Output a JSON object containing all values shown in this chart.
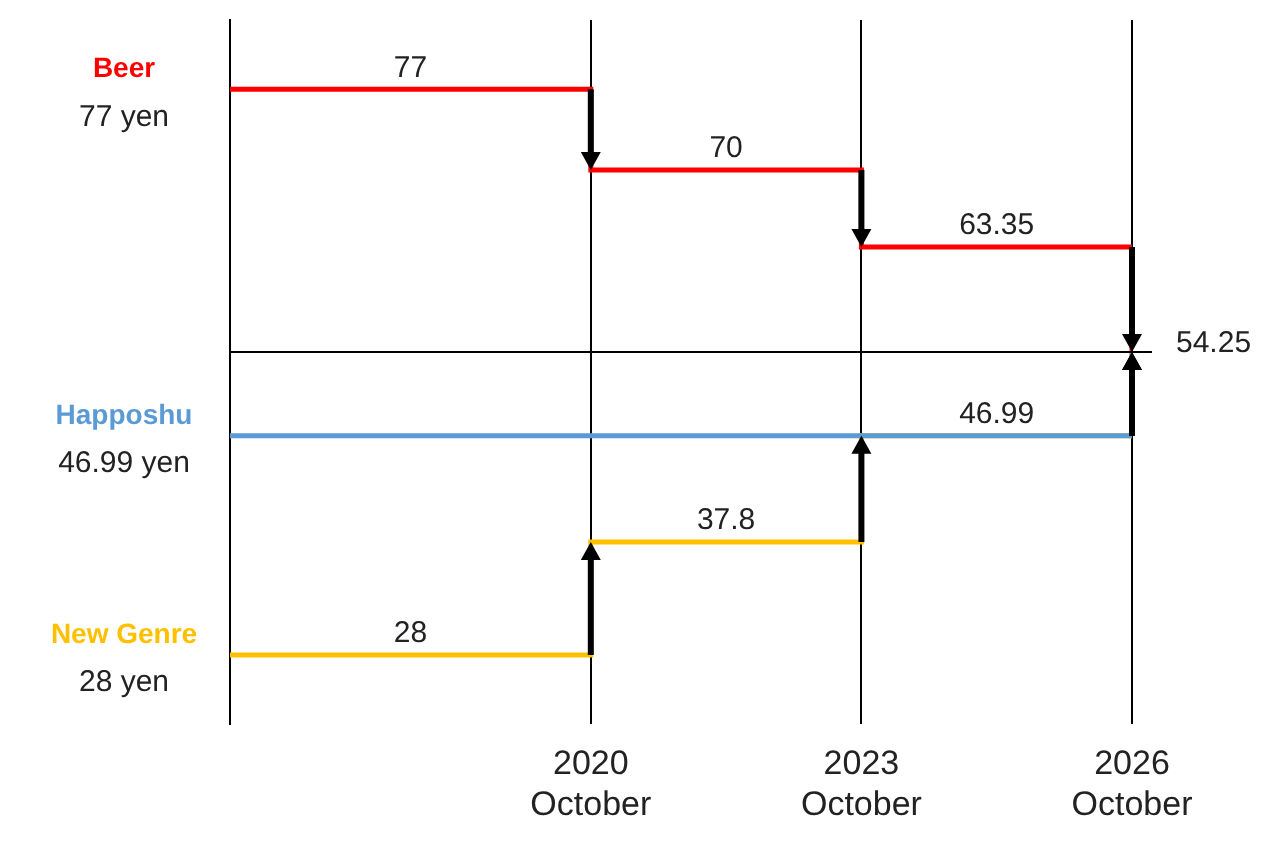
{
  "chart_data": {
    "type": "step",
    "xlim": [
      "2016-10",
      "2026-10"
    ],
    "xticks": [
      {
        "value": "2020-10",
        "label": "2020\nOctober"
      },
      {
        "value": "2023-10",
        "label": "2023\nOctober"
      },
      {
        "value": "2026-10",
        "label": "2026\nOctober"
      }
    ],
    "series": [
      {
        "name": "Beer",
        "color": "#ff0000",
        "x": [
          "2016-10",
          "2018-10",
          "2020-10",
          "2022-04",
          "2023-10",
          "2025-04",
          "2026-10"
        ],
        "values": [
          77,
          77,
          70,
          70,
          63.35,
          63.35,
          54.25
        ],
        "value_labels": [
          null,
          "77",
          null,
          "70",
          null,
          "63.35",
          null
        ]
      },
      {
        "name": "Happoshu",
        "color": "#5b9bd5",
        "x": [
          "2016-10",
          "2026-10"
        ],
        "values": [
          46.99,
          54.25
        ]
      },
      {
        "name": "New Genre",
        "color": "#ffc000",
        "x": [
          "2016-10",
          "2018-10",
          "2020-10",
          "2022-04",
          "2023-10",
          "2025-04",
          "2026-10"
        ],
        "values": [
          28,
          28,
          37.8,
          37.8,
          46.99,
          46.99,
          54.25
        ],
        "value_labels": [
          null,
          "28",
          null,
          "37.8",
          null,
          "46.99",
          null
        ]
      }
    ],
    "ylim": [
      22,
      83
    ],
    "tick_labels": "x",
    "grid": "x",
    "legend": false,
    "ref_lines": [
      {
        "axis": "y",
        "value": 54.25,
        "label": "54.25",
        "color": "#000000"
      }
    ],
    "annotations": [
      "77 yen",
      "46.99 yen",
      "28 yen"
    ]
  }
}
